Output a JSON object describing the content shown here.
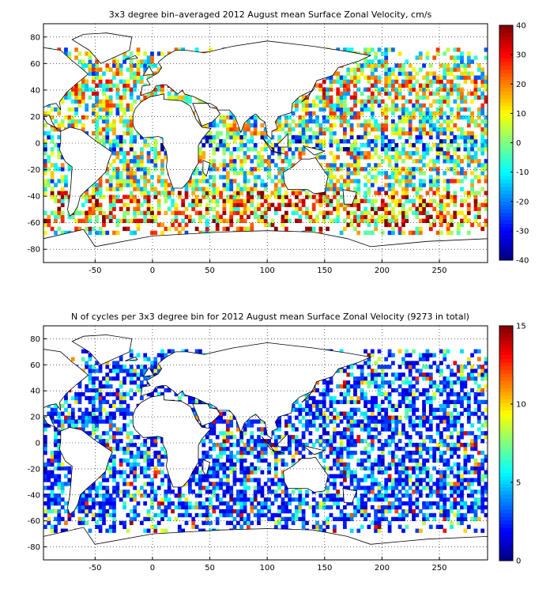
{
  "chart_data": [
    {
      "type": "heatmap",
      "title": "3x3 degree bin–averaged 2012 August mean Surface Zonal Velocity, cm/s",
      "xlabel": "",
      "ylabel": "",
      "xlim": [
        -95,
        292
      ],
      "ylim": [
        -90,
        90
      ],
      "xticks": [
        -50,
        0,
        50,
        100,
        150,
        200,
        250
      ],
      "yticks": [
        -80,
        -60,
        -40,
        -20,
        0,
        20,
        40,
        60,
        80
      ],
      "grid": true,
      "colorbar": {
        "min": -40,
        "max": 40,
        "ticks": [
          -40,
          -30,
          -20,
          -10,
          0,
          10,
          20,
          30,
          40
        ],
        "colormap": "jet",
        "placement": "right"
      },
      "bin_size_deg": 3,
      "pattern": "diverging"
    },
    {
      "type": "heatmap",
      "title": "N of cycles per 3x3 degree bin for 2012 August mean Surface Zonal Velocity (9273 in total)",
      "xlabel": "",
      "ylabel": "",
      "xlim": [
        -95,
        292
      ],
      "ylim": [
        -90,
        90
      ],
      "xticks": [
        -50,
        0,
        50,
        100,
        150,
        200,
        250
      ],
      "yticks": [
        -80,
        -60,
        -40,
        -20,
        0,
        20,
        40,
        60,
        80
      ],
      "grid": true,
      "colorbar": {
        "min": 0,
        "max": 15,
        "ticks": [
          0,
          5,
          10,
          15
        ],
        "colormap": "jet",
        "placement": "right"
      },
      "bin_size_deg": 3,
      "total_cycles": 9273,
      "pattern": "counts"
    }
  ]
}
